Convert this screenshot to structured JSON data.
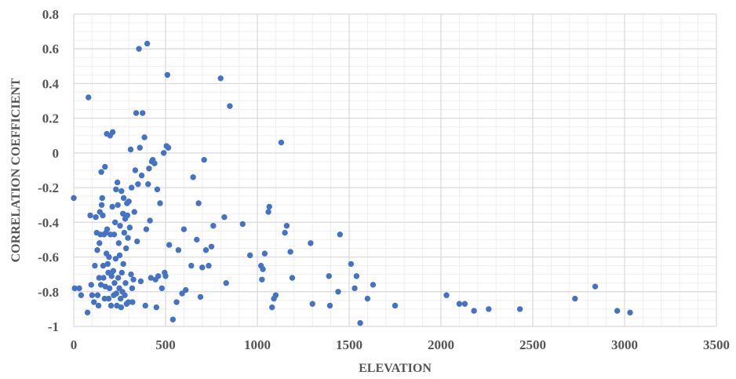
{
  "chart_data": {
    "type": "scatter",
    "title": "",
    "xlabel": "ELEVATION",
    "ylabel": "CORRELATION COEFFICIENT",
    "xlim": [
      0,
      3500
    ],
    "ylim": [
      -1,
      0.8
    ],
    "xticks": [
      0,
      500,
      1000,
      1500,
      2000,
      2500,
      3000,
      3500
    ],
    "yticks": [
      -1,
      -0.8,
      -0.6,
      -0.4,
      -0.2,
      0,
      0.2,
      0.4,
      0.6,
      0.8
    ],
    "x_minor_step": 100,
    "y_minor_step": 0.05,
    "grid": true,
    "marker_color": "#4472C4",
    "grid_major_color": "#d9d9d9",
    "grid_minor_color": "#efefef",
    "points": [
      [
        0,
        -0.26
      ],
      [
        5,
        -0.78
      ],
      [
        30,
        -0.78
      ],
      [
        40,
        -0.82
      ],
      [
        75,
        -0.92
      ],
      [
        80,
        0.32
      ],
      [
        90,
        -0.36
      ],
      [
        95,
        -0.76
      ],
      [
        100,
        -0.82
      ],
      [
        110,
        -0.86
      ],
      [
        115,
        -0.65
      ],
      [
        120,
        -0.37
      ],
      [
        125,
        -0.46
      ],
      [
        128,
        -0.56
      ],
      [
        130,
        -0.82
      ],
      [
        135,
        -0.88
      ],
      [
        138,
        -0.72
      ],
      [
        140,
        -0.52
      ],
      [
        142,
        -0.34
      ],
      [
        145,
        -0.47
      ],
      [
        148,
        -0.76
      ],
      [
        150,
        -0.11
      ],
      [
        152,
        -0.3
      ],
      [
        155,
        -0.26
      ],
      [
        158,
        -0.36
      ],
      [
        160,
        -0.65
      ],
      [
        162,
        -0.72
      ],
      [
        165,
        -0.47
      ],
      [
        168,
        -0.84
      ],
      [
        170,
        -0.08
      ],
      [
        172,
        -0.77
      ],
      [
        175,
        -0.46
      ],
      [
        178,
        -0.58
      ],
      [
        180,
        0.11
      ],
      [
        182,
        -0.44
      ],
      [
        185,
        -0.64
      ],
      [
        188,
        -0.69
      ],
      [
        190,
        -0.84
      ],
      [
        192,
        -0.6
      ],
      [
        195,
        -0.78
      ],
      [
        198,
        0.1
      ],
      [
        200,
        -0.47
      ],
      [
        203,
        -0.88
      ],
      [
        206,
        -0.71
      ],
      [
        210,
        -0.31
      ],
      [
        212,
        0.12
      ],
      [
        215,
        -0.68
      ],
      [
        218,
        -0.82
      ],
      [
        220,
        -0.47
      ],
      [
        222,
        -0.75
      ],
      [
        225,
        -0.4
      ],
      [
        228,
        -0.61
      ],
      [
        230,
        -0.21
      ],
      [
        232,
        -0.81
      ],
      [
        235,
        -0.88
      ],
      [
        238,
        -0.17
      ],
      [
        240,
        -0.3
      ],
      [
        242,
        -0.72
      ],
      [
        245,
        -0.52
      ],
      [
        248,
        -0.78
      ],
      [
        250,
        -0.59
      ],
      [
        252,
        -0.42
      ],
      [
        255,
        -0.84
      ],
      [
        258,
        -0.89
      ],
      [
        260,
        -0.22
      ],
      [
        262,
        -0.69
      ],
      [
        265,
        -0.8
      ],
      [
        268,
        -0.35
      ],
      [
        270,
        -0.64
      ],
      [
        272,
        -0.26
      ],
      [
        275,
        -0.46
      ],
      [
        278,
        -0.82
      ],
      [
        280,
        -0.38
      ],
      [
        282,
        -0.75
      ],
      [
        285,
        -0.55
      ],
      [
        288,
        -0.87
      ],
      [
        290,
        -0.29
      ],
      [
        292,
        -0.36
      ],
      [
        295,
        -0.49
      ],
      [
        298,
        -0.86
      ],
      [
        300,
        -0.28
      ],
      [
        305,
        -0.43
      ],
      [
        310,
        0.02
      ],
      [
        312,
        -0.7
      ],
      [
        315,
        -0.2
      ],
      [
        318,
        -0.78
      ],
      [
        320,
        -0.86
      ],
      [
        325,
        -0.73
      ],
      [
        330,
        -0.34
      ],
      [
        335,
        -0.1
      ],
      [
        340,
        0.23
      ],
      [
        345,
        -0.51
      ],
      [
        350,
        -0.18
      ],
      [
        355,
        0.6
      ],
      [
        360,
        0.03
      ],
      [
        365,
        -0.74
      ],
      [
        370,
        -0.13
      ],
      [
        375,
        0.23
      ],
      [
        385,
        0.09
      ],
      [
        390,
        -0.88
      ],
      [
        395,
        -0.44
      ],
      [
        400,
        0.63
      ],
      [
        405,
        -0.18
      ],
      [
        410,
        -0.09
      ],
      [
        415,
        -0.39
      ],
      [
        420,
        -0.72
      ],
      [
        425,
        -0.05
      ],
      [
        430,
        -0.04
      ],
      [
        440,
        -0.06
      ],
      [
        445,
        -0.73
      ],
      [
        450,
        -0.89
      ],
      [
        455,
        -0.21
      ],
      [
        460,
        -0.71
      ],
      [
        470,
        -0.29
      ],
      [
        480,
        -0.78
      ],
      [
        490,
        0.0
      ],
      [
        495,
        -0.69
      ],
      [
        500,
        -0.71
      ],
      [
        505,
        0.04
      ],
      [
        510,
        0.45
      ],
      [
        515,
        0.03
      ],
      [
        520,
        -0.53
      ],
      [
        540,
        -0.96
      ],
      [
        560,
        -0.86
      ],
      [
        570,
        -0.56
      ],
      [
        590,
        -0.81
      ],
      [
        600,
        -0.44
      ],
      [
        610,
        -0.79
      ],
      [
        640,
        -0.65
      ],
      [
        650,
        -0.14
      ],
      [
        670,
        -0.5
      ],
      [
        680,
        -0.29
      ],
      [
        690,
        -0.83
      ],
      [
        700,
        -0.66
      ],
      [
        710,
        -0.04
      ],
      [
        720,
        -0.56
      ],
      [
        735,
        -0.65
      ],
      [
        750,
        -0.54
      ],
      [
        760,
        -0.42
      ],
      [
        800,
        0.43
      ],
      [
        820,
        -0.37
      ],
      [
        830,
        -0.75
      ],
      [
        850,
        0.27
      ],
      [
        920,
        -0.41
      ],
      [
        960,
        -0.59
      ],
      [
        1020,
        -0.65
      ],
      [
        1025,
        -0.73
      ],
      [
        1030,
        -0.67
      ],
      [
        1040,
        -0.58
      ],
      [
        1060,
        -0.34
      ],
      [
        1065,
        -0.31
      ],
      [
        1080,
        -0.89
      ],
      [
        1090,
        -0.84
      ],
      [
        1100,
        -0.82
      ],
      [
        1130,
        0.06
      ],
      [
        1150,
        -0.46
      ],
      [
        1160,
        -0.42
      ],
      [
        1180,
        -0.57
      ],
      [
        1190,
        -0.72
      ],
      [
        1290,
        -0.52
      ],
      [
        1300,
        -0.87
      ],
      [
        1390,
        -0.71
      ],
      [
        1395,
        -0.88
      ],
      [
        1440,
        -0.8
      ],
      [
        1450,
        -0.47
      ],
      [
        1510,
        -0.64
      ],
      [
        1530,
        -0.78
      ],
      [
        1540,
        -0.71
      ],
      [
        1560,
        -0.98
      ],
      [
        1600,
        -0.84
      ],
      [
        1630,
        -0.76
      ],
      [
        1750,
        -0.88
      ],
      [
        2030,
        -0.82
      ],
      [
        2100,
        -0.87
      ],
      [
        2130,
        -0.87
      ],
      [
        2180,
        -0.91
      ],
      [
        2260,
        -0.9
      ],
      [
        2430,
        -0.9
      ],
      [
        2730,
        -0.84
      ],
      [
        2840,
        -0.77
      ],
      [
        2960,
        -0.91
      ],
      [
        3030,
        -0.92
      ]
    ]
  }
}
